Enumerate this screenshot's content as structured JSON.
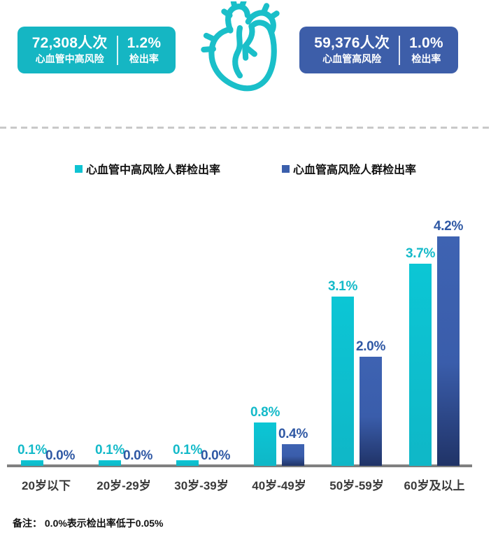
{
  "header": {
    "left_card": {
      "count": "72,308人次",
      "label": "心血管中高风险",
      "rate": "1.2%",
      "rate_label": "检出率",
      "color": "#15b6c3"
    },
    "right_card": {
      "count": "59,376人次",
      "label": "心血管高风险",
      "rate": "1.0%",
      "rate_label": "检出率",
      "color": "#3d5ea9"
    },
    "heart_icon": "anatomical-heart-outline-icon",
    "heart_color": "#1abfc9"
  },
  "legend": [
    {
      "label": "心血管中高风险人群检出率",
      "color": "#0fc3d2"
    },
    {
      "label": "心血管高风险人群检出率",
      "color": "#3b5fac"
    }
  ],
  "chart_data": {
    "type": "bar",
    "categories": [
      "20岁以下",
      "20岁-29岁",
      "30岁-39岁",
      "40岁-49岁",
      "50岁-59岁",
      "60岁及以上"
    ],
    "series": [
      {
        "name": "心血管中高风险人群检出率",
        "values": [
          0.1,
          0.1,
          0.1,
          0.8,
          3.1,
          3.7
        ],
        "labels": [
          "0.1%",
          "0.1%",
          "0.1%",
          "0.8%",
          "3.1%",
          "3.7%"
        ],
        "color": "#0cc4d4"
      },
      {
        "name": "心血管高风险人群检出率",
        "values": [
          0.0,
          0.0,
          0.0,
          0.4,
          2.0,
          4.2
        ],
        "labels": [
          "0.0%",
          "0.0%",
          "0.0%",
          "0.4%",
          "2.0%",
          "4.2%"
        ],
        "color": "#3b5fac"
      }
    ],
    "unit": "%",
    "ylim": [
      0,
      4.5
    ],
    "grid": false,
    "legend_position": "top",
    "value_labels": true,
    "title": ""
  },
  "note": "备注：  0.0%表示检出率低于0.05%"
}
